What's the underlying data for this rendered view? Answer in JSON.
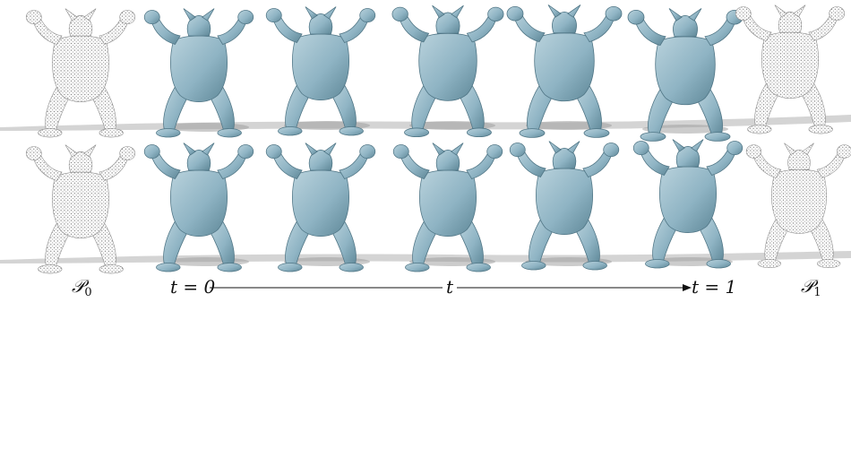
{
  "figure": {
    "rows": [
      {
        "frames": [
          "point-cloud",
          "mesh",
          "mesh",
          "mesh",
          "mesh",
          "mesh",
          "point-cloud"
        ]
      },
      {
        "frames": [
          "point-cloud",
          "mesh",
          "mesh",
          "mesh",
          "mesh",
          "mesh",
          "point-cloud"
        ]
      }
    ],
    "labels": {
      "p0": {
        "main": "𝒫",
        "sub": "0"
      },
      "p1": {
        "main": "𝒫",
        "sub": "1"
      },
      "t_start": "t = 0",
      "t_mid": "t",
      "t_end": "t = 1"
    },
    "colors": {
      "mesh": "#8fb4c4",
      "mesh_shade": "#5e8797",
      "cloud": "#8a8a8a",
      "shadow": "#c8c8c8"
    }
  }
}
